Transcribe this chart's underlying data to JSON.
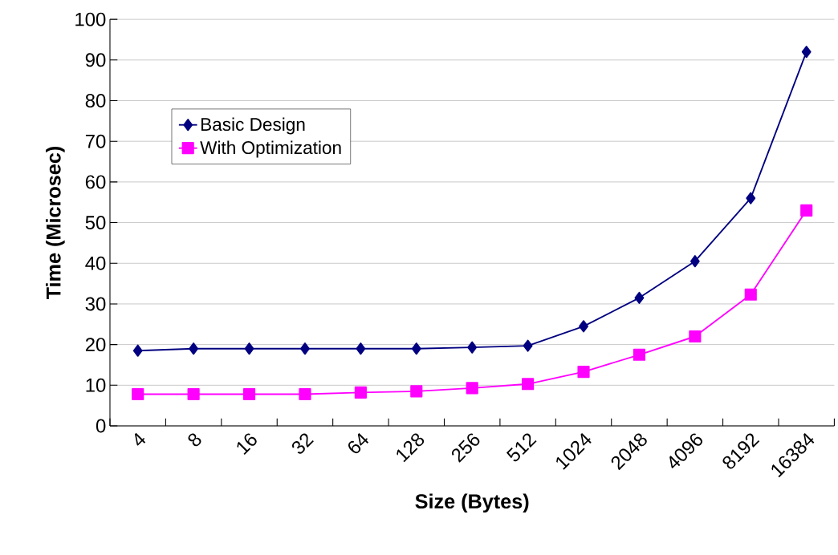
{
  "chart_data": {
    "type": "line",
    "xlabel": "Size (Bytes)",
    "ylabel": "Time (Microsec)",
    "categories": [
      "4",
      "8",
      "16",
      "32",
      "64",
      "128",
      "256",
      "512",
      "1024",
      "2048",
      "4096",
      "8192",
      "16384"
    ],
    "series": [
      {
        "name": "Basic Design",
        "color": "#000080",
        "marker": "diamond",
        "values": [
          18.5,
          19,
          19,
          19,
          19,
          19,
          19.3,
          19.7,
          24.5,
          31.5,
          40.5,
          56,
          92
        ]
      },
      {
        "name": "With Optimization",
        "color": "#ff00ff",
        "marker": "square",
        "values": [
          7.8,
          7.8,
          7.8,
          7.8,
          8.2,
          8.5,
          9.3,
          10.3,
          13.3,
          17.5,
          22,
          32.3,
          53
        ]
      }
    ],
    "ylim": [
      0,
      100
    ],
    "yticks": [
      0,
      10,
      20,
      30,
      40,
      50,
      60,
      70,
      80,
      90,
      100
    ],
    "grid": "y",
    "legend": "top left",
    "line_style": "solid"
  }
}
